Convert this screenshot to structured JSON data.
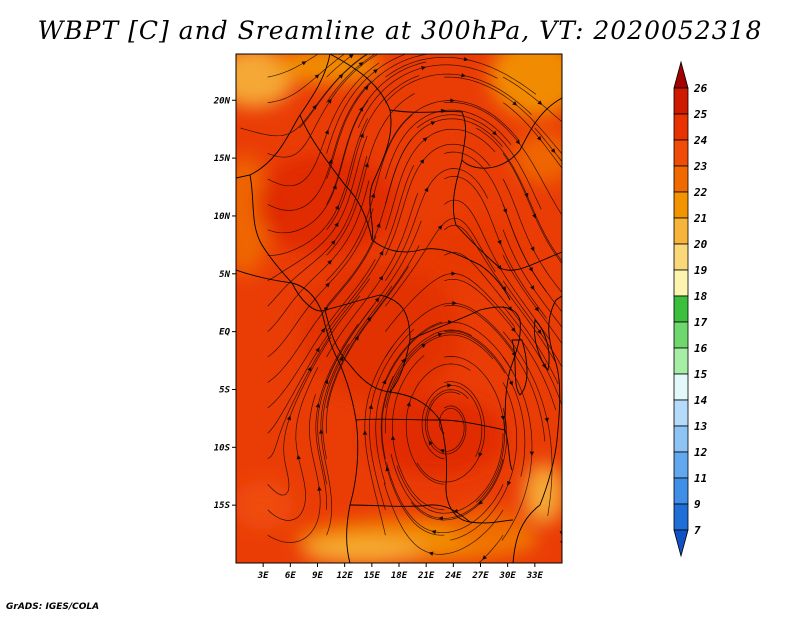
{
  "chart_data": {
    "type": "heatmap",
    "title": "WBPT [C] and Sreamline at 300hPa, VT: 2020052318",
    "variable": "WBPT",
    "units": "C",
    "level": "300hPa",
    "valid_time": "2020052318",
    "overlay": "streamlines",
    "x_range": [
      0,
      36
    ],
    "y_range": [
      -20,
      24
    ],
    "x_ticks": [
      3,
      6,
      9,
      12,
      15,
      18,
      21,
      24,
      27,
      30,
      33
    ],
    "x_tick_labels": [
      "3E",
      "6E",
      "9E",
      "12E",
      "15E",
      "18E",
      "21E",
      "24E",
      "27E",
      "30E",
      "33E"
    ],
    "y_ticks": [
      20,
      15,
      10,
      5,
      0,
      -5,
      -10,
      -15
    ],
    "y_tick_labels": [
      "20N",
      "15N",
      "10N",
      "5N",
      "EQ",
      "5S",
      "10S",
      "15S"
    ],
    "colorbar": {
      "levels": [
        "26",
        "25",
        "24",
        "23",
        "22",
        "21",
        "20",
        "19",
        "18",
        "17",
        "16",
        "15",
        "14",
        "13",
        "12",
        "11",
        "9",
        "7"
      ],
      "colors": [
        "#a50000",
        "#cf1a00",
        "#e83200",
        "#f04c08",
        "#f06a00",
        "#f29400",
        "#f6b43a",
        "#fad87a",
        "#fcf4b0",
        "#3cbf3c",
        "#6ed86e",
        "#a6eea6",
        "#e2f8fa",
        "#b4dcfa",
        "#8ec4f4",
        "#62a8ee",
        "#3f8fe6",
        "#1f6fd6",
        "#1052c6"
      ],
      "extend": "both"
    },
    "field_summary": {
      "dominant_range": [
        23,
        24
      ],
      "warm_core_centers": [
        [
          8,
          12
        ],
        [
          16,
          0
        ],
        [
          22,
          -10
        ]
      ],
      "cooler_edges": [
        [
          2,
          22
        ],
        [
          33,
          22
        ],
        [
          20,
          -18
        ]
      ]
    }
  },
  "credit": "GrADS: IGES/COLA"
}
